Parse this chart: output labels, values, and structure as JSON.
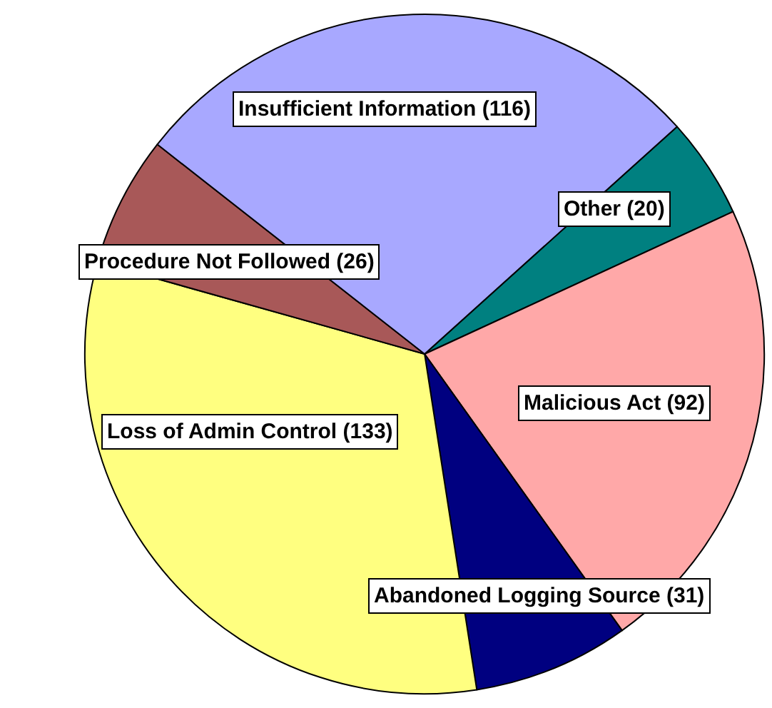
{
  "chart_data": {
    "type": "pie",
    "categories": [
      "Other",
      "Malicious Act",
      "Abandoned Logging Source",
      "Loss of Admin Control",
      "Procedure Not Followed",
      "Insufficient Information"
    ],
    "values": [
      20,
      92,
      31,
      133,
      26,
      116
    ],
    "value_labels": [
      "(20)",
      "(92)",
      "(31)",
      "(133)",
      "(26)",
      "(116)"
    ],
    "colors": [
      "#008080",
      "#ffa8a8",
      "#000080",
      "#ffff80",
      "#a85858",
      "#a8a8ff"
    ],
    "legend": false
  }
}
